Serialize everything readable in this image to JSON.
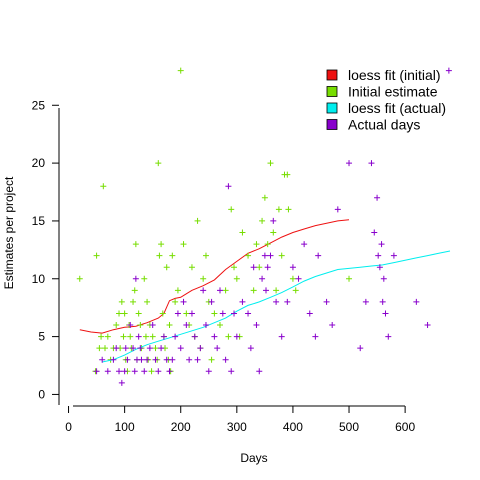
{
  "chart_data": {
    "type": "scatter",
    "title": "",
    "xlabel": "Days",
    "ylabel": "Estimates per project",
    "xlim": [
      -17,
      680
    ],
    "ylim": [
      -1,
      29
    ],
    "xticks": [
      "0",
      "100",
      "200",
      "300",
      "400",
      "500",
      "600"
    ],
    "yticks": [
      "0",
      "5",
      "10",
      "15",
      "20",
      "25"
    ],
    "grid": false,
    "legend_position": "top-right",
    "colors": {
      "loess_initial": "#ee1111",
      "initial_points": "#77dd00",
      "loess_actual": "#00eeee",
      "actual_points": "#8800cc"
    },
    "series": [
      {
        "name": "loess fit (initial)",
        "kind": "line",
        "color_key": "loess_initial",
        "points": [
          [
            20,
            5.6
          ],
          [
            40,
            5.4
          ],
          [
            60,
            5.3
          ],
          [
            80,
            5.6
          ],
          [
            100,
            5.8
          ],
          [
            120,
            5.9
          ],
          [
            140,
            6.2
          ],
          [
            160,
            6.6
          ],
          [
            170,
            7.0
          ],
          [
            180,
            8.1
          ],
          [
            190,
            8.3
          ],
          [
            200,
            8.4
          ],
          [
            210,
            8.7
          ],
          [
            220,
            9.0
          ],
          [
            240,
            9.4
          ],
          [
            260,
            9.9
          ],
          [
            280,
            10.8
          ],
          [
            300,
            11.5
          ],
          [
            320,
            12.2
          ],
          [
            340,
            12.6
          ],
          [
            360,
            13.1
          ],
          [
            380,
            13.6
          ],
          [
            400,
            14.0
          ],
          [
            420,
            14.3
          ],
          [
            440,
            14.6
          ],
          [
            460,
            14.8
          ],
          [
            480,
            15.0
          ],
          [
            500,
            15.1
          ]
        ]
      },
      {
        "name": "Initial estimate",
        "kind": "points",
        "color_key": "initial_points",
        "points": [
          [
            20,
            10
          ],
          [
            50,
            12
          ],
          [
            62,
            18
          ],
          [
            48,
            2
          ],
          [
            55,
            4
          ],
          [
            58,
            5
          ],
          [
            65,
            4
          ],
          [
            70,
            5
          ],
          [
            75,
            3
          ],
          [
            80,
            4
          ],
          [
            85,
            6
          ],
          [
            90,
            7
          ],
          [
            92,
            4
          ],
          [
            95,
            8
          ],
          [
            98,
            5
          ],
          [
            100,
            7
          ],
          [
            102,
            3
          ],
          [
            105,
            2
          ],
          [
            108,
            6
          ],
          [
            110,
            5
          ],
          [
            112,
            4
          ],
          [
            115,
            8
          ],
          [
            118,
            9
          ],
          [
            120,
            13
          ],
          [
            122,
            3
          ],
          [
            125,
            7
          ],
          [
            128,
            6
          ],
          [
            130,
            4
          ],
          [
            135,
            10
          ],
          [
            138,
            5
          ],
          [
            140,
            8
          ],
          [
            142,
            3
          ],
          [
            145,
            6
          ],
          [
            148,
            2
          ],
          [
            150,
            5
          ],
          [
            155,
            4
          ],
          [
            158,
            3
          ],
          [
            160,
            20
          ],
          [
            162,
            12
          ],
          [
            165,
            13
          ],
          [
            168,
            7
          ],
          [
            170,
            5
          ],
          [
            172,
            4
          ],
          [
            175,
            11
          ],
          [
            178,
            3
          ],
          [
            180,
            6
          ],
          [
            182,
            2
          ],
          [
            185,
            12
          ],
          [
            190,
            8
          ],
          [
            195,
            9
          ],
          [
            200,
            28
          ],
          [
            205,
            13
          ],
          [
            210,
            7
          ],
          [
            215,
            6
          ],
          [
            220,
            11
          ],
          [
            225,
            5
          ],
          [
            230,
            15
          ],
          [
            235,
            4
          ],
          [
            240,
            10
          ],
          [
            245,
            12
          ],
          [
            250,
            8
          ],
          [
            255,
            3
          ],
          [
            260,
            7
          ],
          [
            270,
            6
          ],
          [
            280,
            9
          ],
          [
            285,
            5
          ],
          [
            290,
            16
          ],
          [
            295,
            11
          ],
          [
            300,
            10
          ],
          [
            305,
            5
          ],
          [
            310,
            14
          ],
          [
            320,
            12
          ],
          [
            330,
            9
          ],
          [
            335,
            13
          ],
          [
            340,
            11
          ],
          [
            345,
            15
          ],
          [
            350,
            17
          ],
          [
            355,
            13
          ],
          [
            360,
            20
          ],
          [
            365,
            14
          ],
          [
            370,
            9
          ],
          [
            375,
            16
          ],
          [
            380,
            12
          ],
          [
            385,
            19
          ],
          [
            390,
            19
          ],
          [
            392,
            16
          ],
          [
            400,
            10
          ],
          [
            405,
            9
          ],
          [
            500,
            10
          ]
        ]
      },
      {
        "name": "loess fit (actual)",
        "kind": "line",
        "color_key": "loess_actual",
        "points": [
          [
            60,
            2.8
          ],
          [
            80,
            3.0
          ],
          [
            100,
            3.4
          ],
          [
            120,
            3.9
          ],
          [
            140,
            4.3
          ],
          [
            160,
            4.6
          ],
          [
            180,
            4.9
          ],
          [
            200,
            5.2
          ],
          [
            220,
            5.5
          ],
          [
            240,
            5.8
          ],
          [
            260,
            6.2
          ],
          [
            280,
            6.6
          ],
          [
            300,
            7.2
          ],
          [
            320,
            7.7
          ],
          [
            340,
            8.0
          ],
          [
            360,
            8.4
          ],
          [
            380,
            8.8
          ],
          [
            400,
            9.3
          ],
          [
            420,
            9.8
          ],
          [
            440,
            10.2
          ],
          [
            460,
            10.5
          ],
          [
            480,
            10.8
          ],
          [
            500,
            10.9
          ],
          [
            520,
            11.0
          ],
          [
            540,
            11.1
          ],
          [
            560,
            11.2
          ],
          [
            580,
            11.4
          ],
          [
            600,
            11.6
          ],
          [
            620,
            11.8
          ],
          [
            640,
            12.0
          ],
          [
            660,
            12.2
          ],
          [
            680,
            12.4
          ]
        ]
      },
      {
        "name": "Actual days",
        "kind": "points",
        "color_key": "actual_points",
        "points": [
          [
            50,
            2
          ],
          [
            60,
            3
          ],
          [
            70,
            2
          ],
          [
            80,
            3
          ],
          [
            85,
            4
          ],
          [
            90,
            2
          ],
          [
            95,
            1
          ],
          [
            100,
            2
          ],
          [
            102,
            4
          ],
          [
            105,
            3
          ],
          [
            110,
            6
          ],
          [
            115,
            4
          ],
          [
            118,
            2
          ],
          [
            120,
            10
          ],
          [
            122,
            3
          ],
          [
            125,
            5
          ],
          [
            128,
            4
          ],
          [
            130,
            3
          ],
          [
            135,
            2
          ],
          [
            140,
            3
          ],
          [
            145,
            4
          ],
          [
            150,
            6
          ],
          [
            155,
            3
          ],
          [
            160,
            2
          ],
          [
            165,
            4
          ],
          [
            170,
            5
          ],
          [
            175,
            3
          ],
          [
            180,
            2
          ],
          [
            185,
            3
          ],
          [
            190,
            5
          ],
          [
            195,
            7
          ],
          [
            200,
            4
          ],
          [
            205,
            8
          ],
          [
            210,
            6
          ],
          [
            215,
            3
          ],
          [
            220,
            7
          ],
          [
            225,
            5
          ],
          [
            230,
            3
          ],
          [
            235,
            4
          ],
          [
            240,
            9
          ],
          [
            245,
            6
          ],
          [
            250,
            2
          ],
          [
            255,
            8
          ],
          [
            260,
            5
          ],
          [
            265,
            4
          ],
          [
            270,
            9
          ],
          [
            275,
            7
          ],
          [
            280,
            3
          ],
          [
            285,
            18
          ],
          [
            290,
            2
          ],
          [
            295,
            7
          ],
          [
            300,
            5
          ],
          [
            310,
            8
          ],
          [
            320,
            7
          ],
          [
            325,
            4
          ],
          [
            330,
            11
          ],
          [
            335,
            6
          ],
          [
            340,
            2
          ],
          [
            345,
            10
          ],
          [
            350,
            12
          ],
          [
            352,
            9
          ],
          [
            355,
            11
          ],
          [
            360,
            12
          ],
          [
            365,
            15
          ],
          [
            370,
            8
          ],
          [
            380,
            5
          ],
          [
            390,
            8
          ],
          [
            400,
            11
          ],
          [
            410,
            10
          ],
          [
            420,
            13
          ],
          [
            430,
            7
          ],
          [
            440,
            5
          ],
          [
            445,
            12
          ],
          [
            460,
            8
          ],
          [
            470,
            6
          ],
          [
            480,
            16
          ],
          [
            500,
            20
          ],
          [
            520,
            4
          ],
          [
            530,
            8
          ],
          [
            540,
            20
          ],
          [
            545,
            14
          ],
          [
            550,
            17
          ],
          [
            552,
            12
          ],
          [
            555,
            11
          ],
          [
            558,
            13
          ],
          [
            560,
            8
          ],
          [
            562,
            10
          ],
          [
            565,
            7
          ],
          [
            570,
            5
          ],
          [
            580,
            12
          ],
          [
            620,
            8
          ],
          [
            640,
            6
          ],
          [
            678,
            28
          ]
        ]
      }
    ]
  }
}
